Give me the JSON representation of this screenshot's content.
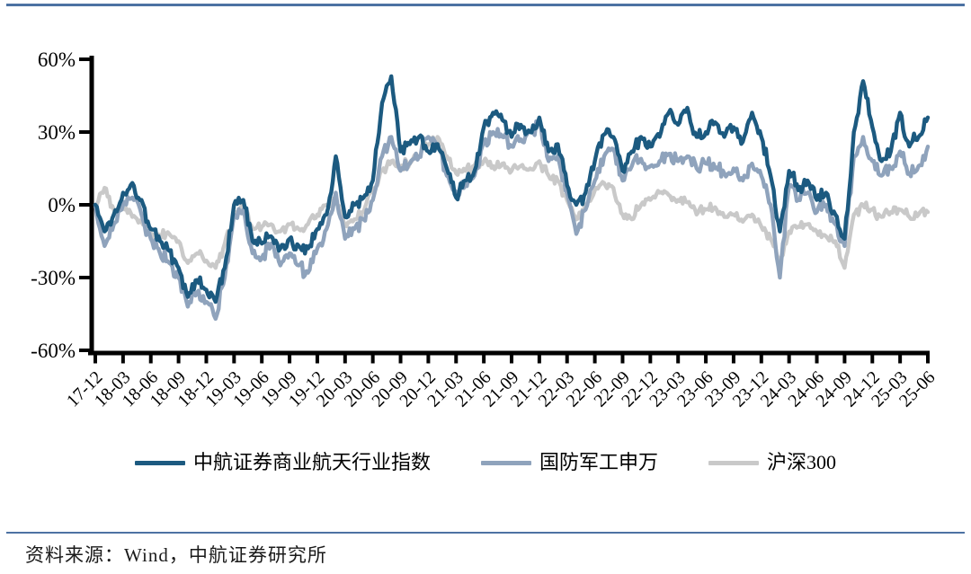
{
  "page": {
    "source_text": "资料来源：Wind，中航证券研究所"
  },
  "colors": {
    "rule_line": "#4d72a3",
    "axis": "#000000",
    "series_blue": "#1c5a80",
    "series_steel": "#8fa3bc",
    "series_gray": "#c9c9c9"
  },
  "chart_data": {
    "type": "line",
    "title": "",
    "xlabel": "",
    "ylabel": "",
    "ylim": [
      -60,
      60
    ],
    "grid": false,
    "legend_position": "bottom",
    "y_ticks": [
      "60%",
      "30%",
      "0%",
      "-30%",
      "-60%"
    ],
    "y_tick_values": [
      60,
      30,
      0,
      -30,
      -60
    ],
    "x_tick_labels": [
      "17-12",
      "18-03",
      "18-06",
      "18-09",
      "18-12",
      "19-03",
      "19-06",
      "19-09",
      "19-12",
      "20-03",
      "20-06",
      "20-09",
      "20-12",
      "21-03",
      "21-06",
      "21-09",
      "21-12",
      "22-03",
      "22-06",
      "22-09",
      "22-12",
      "23-03",
      "23-06",
      "23-09",
      "23-12",
      "24-03",
      "24-06",
      "24-09",
      "24-12",
      "25-03",
      "25-06"
    ],
    "x_start": "17-12",
    "x_step_months": 1,
    "units": "percent",
    "series": [
      {
        "name": "中航证券商业航天行业指数",
        "color": "#1c5a80",
        "values": [
          0,
          -11,
          -4,
          5,
          9,
          2,
          -10,
          -15,
          -19,
          -26,
          -38,
          -31,
          -35,
          -40,
          -26,
          0,
          2,
          -15,
          -16,
          -13,
          -18,
          -14,
          -17,
          -18,
          -10,
          -4,
          20,
          -5,
          0,
          3,
          10,
          42,
          53,
          22,
          25,
          28,
          22,
          25,
          15,
          3,
          10,
          14,
          32,
          38,
          35,
          28,
          33,
          30,
          36,
          22,
          25,
          8,
          0,
          5,
          18,
          29,
          28,
          14,
          22,
          28,
          24,
          28,
          38,
          33,
          40,
          28,
          30,
          34,
          28,
          32,
          26,
          38,
          28,
          12,
          -11,
          14,
          6,
          10,
          2,
          5,
          -4,
          -14,
          30,
          51,
          32,
          18,
          22,
          38,
          24,
          28,
          36
        ]
      },
      {
        "name": "国防军工申万",
        "color": "#8fa3bc",
        "values": [
          0,
          -17,
          -8,
          0,
          3,
          -4,
          -14,
          -20,
          -24,
          -30,
          -42,
          -36,
          -40,
          -47,
          -30,
          -4,
          -2,
          -20,
          -22,
          -16,
          -25,
          -20,
          -25,
          -28,
          -18,
          -10,
          5,
          -14,
          -10,
          -6,
          2,
          20,
          28,
          14,
          17,
          20,
          28,
          24,
          12,
          5,
          8,
          12,
          26,
          30,
          28,
          24,
          27,
          30,
          33,
          18,
          20,
          5,
          -12,
          -2,
          10,
          20,
          23,
          10,
          16,
          19,
          16,
          18,
          21,
          18,
          20,
          15,
          17,
          15,
          13,
          15,
          10,
          17,
          12,
          0,
          -30,
          8,
          2,
          5,
          -3,
          0,
          -8,
          -17,
          20,
          28,
          18,
          12,
          15,
          22,
          13,
          16,
          24
        ]
      },
      {
        "name": "沪深300",
        "color": "#c9c9c9",
        "values": [
          0,
          7,
          -2,
          -1,
          -5,
          -7,
          -12,
          -13,
          -12,
          -15,
          -24,
          -20,
          -23,
          -26,
          -16,
          -4,
          0,
          -10,
          -9,
          -8,
          -11,
          -8,
          -10,
          -8,
          -4,
          0,
          3,
          -8,
          -6,
          -3,
          6,
          14,
          18,
          16,
          17,
          20,
          25,
          28,
          20,
          13,
          14,
          16,
          18,
          16,
          17,
          14,
          16,
          15,
          18,
          12,
          10,
          2,
          -6,
          0,
          6,
          9,
          7,
          -4,
          -6,
          0,
          2,
          5,
          4,
          2,
          1,
          -4,
          -2,
          -1,
          -5,
          -4,
          -7,
          -4,
          -9,
          -14,
          -23,
          -11,
          -9,
          -8,
          -11,
          -13,
          -15,
          -26,
          -4,
          0,
          -2,
          -5,
          -3,
          -2,
          -5,
          -4,
          -3
        ]
      }
    ]
  }
}
